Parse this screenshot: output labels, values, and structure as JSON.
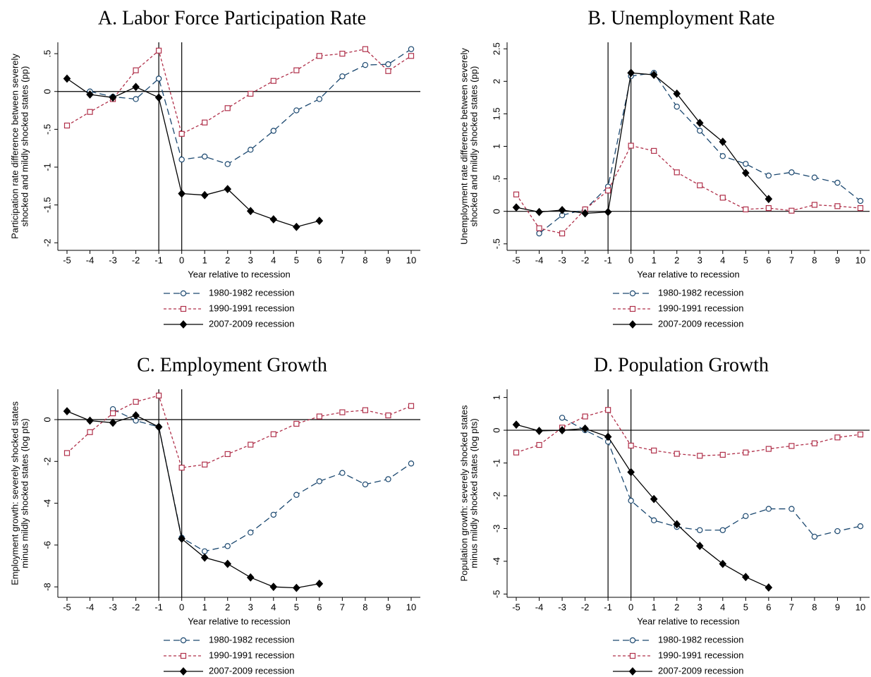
{
  "chart_data": [
    {
      "type": "line",
      "title": "A. Labor Force Participation Rate",
      "xlabel": "Year relative to recession",
      "ylabel": [
        "Participation rate difference between severely",
        "shocked and mildly shocked states (pp)"
      ],
      "x": [
        -5,
        -4,
        -3,
        -2,
        -1,
        0,
        1,
        2,
        3,
        4,
        5,
        6,
        7,
        8,
        9,
        10
      ],
      "xlim": [
        -5.4,
        10.4
      ],
      "xticks": [
        -5,
        -4,
        -3,
        -2,
        -1,
        0,
        1,
        2,
        3,
        4,
        5,
        6,
        7,
        8,
        9,
        10
      ],
      "ylim": [
        -2.1,
        0.65
      ],
      "yticks": [
        -2,
        -1.5,
        -1,
        {
          "value": -0.5,
          "label": "-.5"
        },
        0,
        {
          "value": 0.5,
          "label": ".5"
        }
      ],
      "hlines": [
        0
      ],
      "vlines": [
        -1,
        0
      ],
      "legend": "bottom",
      "series": [
        {
          "name": "1980-1982 recession",
          "color": "#1a476f",
          "marker": "circle",
          "dash": "long",
          "values": [
            null,
            0.0,
            -0.07,
            -0.1,
            0.17,
            -0.9,
            -0.86,
            -0.96,
            -0.77,
            -0.52,
            -0.25,
            -0.1,
            0.2,
            0.35,
            0.36,
            0.56
          ]
        },
        {
          "name": "1990-1991 recession",
          "color": "#b0304a",
          "marker": "square",
          "dash": "short",
          "values": [
            -0.45,
            -0.27,
            -0.1,
            0.28,
            0.54,
            -0.56,
            -0.41,
            -0.22,
            -0.03,
            0.14,
            0.28,
            0.47,
            0.5,
            0.56,
            0.27,
            0.47
          ]
        },
        {
          "name": "2007-2009 recession",
          "color": "#000000",
          "marker": "diamond",
          "dash": "solid",
          "values": [
            0.17,
            -0.04,
            -0.08,
            0.06,
            -0.08,
            -1.35,
            -1.37,
            -1.29,
            -1.58,
            -1.69,
            -1.79,
            -1.71,
            null,
            null,
            null,
            null
          ]
        }
      ]
    },
    {
      "type": "line",
      "title": "B. Unemployment Rate",
      "xlabel": "Year relative to recession",
      "ylabel": [
        "Unemployment rate difference between severely",
        "shocked and mildly shocked states (pp)"
      ],
      "x": [
        -5,
        -4,
        -3,
        -2,
        -1,
        0,
        1,
        2,
        3,
        4,
        5,
        6,
        7,
        8,
        9,
        10
      ],
      "xlim": [
        -5.4,
        10.4
      ],
      "xticks": [
        -5,
        -4,
        -3,
        -2,
        -1,
        0,
        1,
        2,
        3,
        4,
        5,
        6,
        7,
        8,
        9,
        10
      ],
      "ylim": [
        -0.6,
        2.6
      ],
      "yticks": [
        {
          "value": -0.5,
          "label": "-.5"
        },
        0,
        {
          "value": 0.5,
          "label": ".5"
        },
        1,
        1.5,
        2,
        2.5
      ],
      "hlines": [
        0
      ],
      "vlines": [
        -1,
        0
      ],
      "legend": "bottom",
      "series": [
        {
          "name": "1980-1982 recession",
          "color": "#1a476f",
          "marker": "circle",
          "dash": "long",
          "values": [
            null,
            -0.34,
            -0.06,
            0.03,
            0.38,
            2.08,
            2.13,
            1.61,
            1.24,
            0.85,
            0.73,
            0.55,
            0.6,
            0.52,
            0.44,
            0.16
          ]
        },
        {
          "name": "1990-1991 recession",
          "color": "#b0304a",
          "marker": "square",
          "dash": "short",
          "values": [
            0.26,
            -0.26,
            -0.34,
            0.03,
            0.32,
            1.01,
            0.93,
            0.6,
            0.4,
            0.21,
            0.03,
            0.05,
            0.01,
            0.1,
            0.08,
            0.05
          ]
        },
        {
          "name": "2007-2009 recession",
          "color": "#000000",
          "marker": "diamond",
          "dash": "solid",
          "values": [
            0.06,
            -0.01,
            0.02,
            -0.03,
            -0.01,
            2.13,
            2.1,
            1.81,
            1.36,
            1.07,
            0.59,
            0.19,
            null,
            null,
            null,
            null
          ]
        }
      ]
    },
    {
      "type": "line",
      "title": "C. Employment Growth",
      "xlabel": "Year relative to recession",
      "ylabel": [
        "Employment growth: severely shocked states",
        "minus mildly shocked states (log pts)"
      ],
      "x": [
        -5,
        -4,
        -3,
        -2,
        -1,
        0,
        1,
        2,
        3,
        4,
        5,
        6,
        7,
        8,
        9,
        10
      ],
      "xlim": [
        -5.4,
        10.4
      ],
      "xticks": [
        -5,
        -4,
        -3,
        -2,
        -1,
        0,
        1,
        2,
        3,
        4,
        5,
        6,
        7,
        8,
        9,
        10
      ],
      "ylim": [
        -8.5,
        1.45
      ],
      "yticks": [
        -8,
        -6,
        -4,
        -2,
        0
      ],
      "hlines": [
        0
      ],
      "vlines": [
        -1,
        0
      ],
      "legend": "bottom",
      "series": [
        {
          "name": "1980-1982 recession",
          "color": "#1a476f",
          "marker": "circle",
          "dash": "long",
          "values": [
            null,
            null,
            0.5,
            -0.05,
            -0.35,
            -5.65,
            -6.3,
            -6.05,
            -5.4,
            -4.55,
            -3.6,
            -2.95,
            -2.55,
            -3.1,
            -2.85,
            -2.1
          ]
        },
        {
          "name": "1990-1991 recession",
          "color": "#b0304a",
          "marker": "square",
          "dash": "short",
          "values": [
            -1.6,
            -0.6,
            0.3,
            0.85,
            1.15,
            -2.3,
            -2.15,
            -1.65,
            -1.2,
            -0.7,
            -0.2,
            0.15,
            0.35,
            0.45,
            0.2,
            0.65
          ]
        },
        {
          "name": "2007-2009 recession",
          "color": "#000000",
          "marker": "diamond",
          "dash": "solid",
          "values": [
            0.4,
            -0.05,
            -0.15,
            0.2,
            -0.35,
            -5.7,
            -6.6,
            -6.9,
            -7.55,
            -8.0,
            -8.05,
            -7.85,
            null,
            null,
            null,
            null
          ]
        }
      ]
    },
    {
      "type": "line",
      "title": "D. Population Growth",
      "xlabel": "Year relative to recession",
      "ylabel": [
        "Population growth: severely shocked states",
        "minus mildly shocked states (log pts)"
      ],
      "x": [
        -5,
        -4,
        -3,
        -2,
        -1,
        0,
        1,
        2,
        3,
        4,
        5,
        6,
        7,
        8,
        9,
        10
      ],
      "xlim": [
        -5.4,
        10.4
      ],
      "xticks": [
        -5,
        -4,
        -3,
        -2,
        -1,
        0,
        1,
        2,
        3,
        4,
        5,
        6,
        7,
        8,
        9,
        10
      ],
      "ylim": [
        -5.1,
        1.25
      ],
      "yticks": [
        -5,
        -4,
        -3,
        -2,
        -1,
        0,
        1
      ],
      "hlines": [
        0
      ],
      "vlines": [
        -1,
        0
      ],
      "legend": "bottom",
      "series": [
        {
          "name": "1980-1982 recession",
          "color": "#1a476f",
          "marker": "circle",
          "dash": "long",
          "values": [
            null,
            null,
            0.38,
            0.0,
            -0.35,
            -2.15,
            -2.75,
            -2.95,
            -3.05,
            -3.05,
            -2.62,
            -2.4,
            -2.4,
            -3.25,
            -3.08,
            -2.93
          ]
        },
        {
          "name": "1990-1991 recession",
          "color": "#b0304a",
          "marker": "square",
          "dash": "short",
          "values": [
            -0.68,
            -0.45,
            0.08,
            0.42,
            0.62,
            -0.47,
            -0.62,
            -0.72,
            -0.78,
            -0.75,
            -0.68,
            -0.57,
            -0.48,
            -0.4,
            -0.22,
            -0.13
          ]
        },
        {
          "name": "2007-2009 recession",
          "color": "#000000",
          "marker": "diamond",
          "dash": "solid",
          "values": [
            0.17,
            -0.02,
            0.0,
            0.05,
            -0.2,
            -1.28,
            -2.1,
            -2.87,
            -3.53,
            -4.08,
            -4.48,
            -4.8,
            null,
            null,
            null,
            null
          ]
        }
      ]
    }
  ]
}
